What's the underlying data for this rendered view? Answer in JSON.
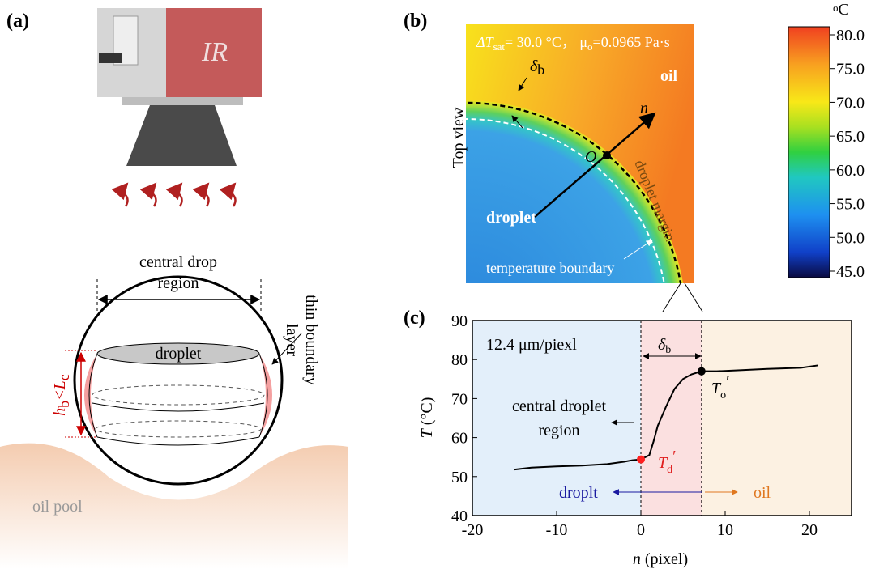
{
  "panel_a": {
    "label": "(a)",
    "camera_label": "IR",
    "region_label": [
      "central drop",
      "region"
    ],
    "droplet_label": "droplet",
    "height_label": [
      "h",
      "b",
      "<L",
      "c"
    ],
    "layer_label": [
      "thin boundary",
      "layer"
    ],
    "pool_label": "oil pool"
  },
  "panel_b": {
    "label": "(b)",
    "condition": [
      "ΔT",
      "sat",
      "= 30.0 °C，  μ",
      "o",
      "=0.0965 Pa·s"
    ],
    "delta_label": [
      "δ",
      "b"
    ],
    "normal_label": "n",
    "oil_label": "oil",
    "origin_label": "O",
    "view_label": "Top view",
    "margin_label": "droplet  margin",
    "droplet_label": "droplet",
    "boundary_label": "temperature boundary",
    "colorbar": {
      "unit": [
        "o",
        "C"
      ],
      "lim": [
        45,
        80
      ],
      "ticks": [
        {
          "value": 45,
          "label": "45.0"
        },
        {
          "value": 50,
          "label": "50.0"
        },
        {
          "value": 55,
          "label": "55.0"
        },
        {
          "value": 60,
          "label": "60.0"
        },
        {
          "value": 65,
          "label": "65.0"
        },
        {
          "value": 70,
          "label": "70.0"
        },
        {
          "value": 75,
          "label": "75.0"
        },
        {
          "value": 80,
          "label": "80.0"
        }
      ]
    }
  },
  "chart_data": {
    "type": "line",
    "panel_label": "(c)",
    "xlabel": [
      "n",
      " (pixel)"
    ],
    "ylabel": [
      "T",
      " (°C)"
    ],
    "xlim": [
      -20,
      25
    ],
    "xticks": [
      -20,
      -10,
      0,
      10,
      20
    ],
    "ylim": [
      40,
      90
    ],
    "yticks": [
      40,
      50,
      60,
      70,
      80,
      90
    ],
    "regions": [
      {
        "from": -20,
        "to": 0,
        "color": "#e3effa"
      },
      {
        "from": 0,
        "to": 7.2,
        "color": "#fbe0e0"
      },
      {
        "from": 7.2,
        "to": 25,
        "color": "#fcf1e2"
      }
    ],
    "series": [
      {
        "color": "#000000",
        "x": [
          -15,
          -13,
          -10,
          -7,
          -4,
          -2,
          -1,
          0,
          1,
          1.5,
          2,
          3,
          4,
          5,
          6,
          7.2,
          9,
          12,
          15,
          19,
          21
        ],
        "values": [
          51.8,
          52.3,
          52.6,
          52.8,
          53.2,
          53.8,
          54.2,
          54.4,
          55.5,
          59,
          63,
          68,
          72.5,
          75,
          76.2,
          77,
          77,
          77.3,
          77.6,
          77.9,
          78.5
        ]
      }
    ],
    "markers": [
      {
        "x": 0,
        "y": 54.4,
        "color": "#ff2020"
      },
      {
        "x": 7.2,
        "y": 77,
        "color": "#000000"
      }
    ],
    "annotations": {
      "scale": "12.4 μm/piexl",
      "delta": [
        "δ",
        "b"
      ],
      "to": [
        "T",
        "o",
        "′"
      ],
      "td": [
        "T",
        "d",
        "′"
      ],
      "central": [
        "central droplet",
        "region"
      ],
      "droplt": "droplt",
      "oil": "oil"
    }
  }
}
